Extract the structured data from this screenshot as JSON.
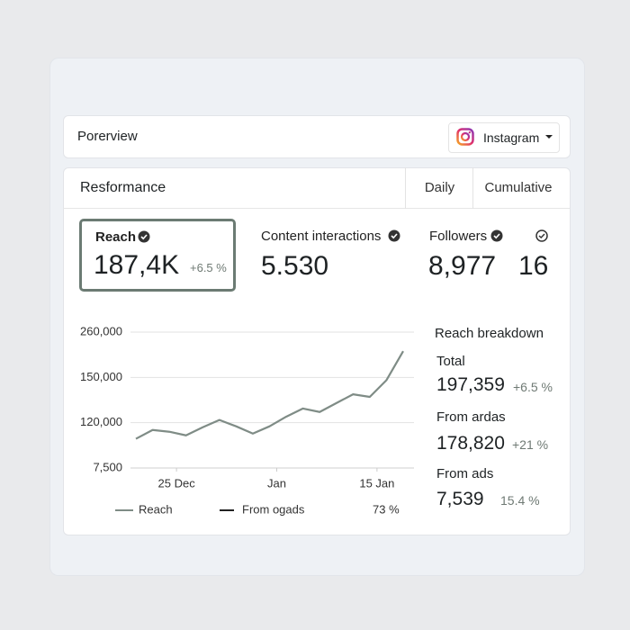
{
  "header": {
    "title": "Porerview",
    "platform": "Instagram"
  },
  "performance": {
    "title": "Resformance",
    "tabs": [
      "Daily",
      "Cumulative"
    ],
    "metrics": [
      {
        "label": "Reach",
        "value": "187,4K",
        "change": "+6.5 %"
      },
      {
        "label": "Content interactions",
        "value": "5.530"
      },
      {
        "label": "Followers",
        "value": "8,977"
      },
      {
        "value": "16"
      }
    ]
  },
  "chart_data": {
    "type": "line",
    "categories": [
      null,
      null,
      "25 Dec",
      null,
      null,
      null,
      null,
      null,
      "Jan",
      null,
      null,
      null,
      null,
      null,
      "15 Jan",
      null,
      null
    ],
    "series": [
      {
        "name": "Reach",
        "color": "#7f8c86",
        "values": [
          80000,
          102000,
          97500,
          88500,
          108750,
          121800,
          111000,
          93000,
          111000,
          124000,
          129400,
          127100,
          133000,
          138800,
          137100,
          148200,
          213800
        ]
      }
    ],
    "extra_legend": [
      {
        "name": "From ogads",
        "color": "#222222"
      }
    ],
    "legend_note": "73 %",
    "ylim": [
      7500,
      260000
    ],
    "yticks": [
      {
        "value": 260000,
        "label": "260,000"
      },
      {
        "value": 150000,
        "label": "150,000"
      },
      {
        "value": 120000,
        "label": "120,000"
      },
      {
        "value": 7500,
        "label": "7,500"
      }
    ],
    "grid": true
  },
  "breakdown": {
    "title": "Reach breakdown",
    "items": [
      {
        "label": "Total",
        "value": "197,359",
        "change": "+6.5 %"
      },
      {
        "label": "From ardas",
        "value": "178,820",
        "change": "+21 %"
      },
      {
        "label": "From ads",
        "value": "7,539",
        "change": "15.4 %"
      }
    ]
  }
}
